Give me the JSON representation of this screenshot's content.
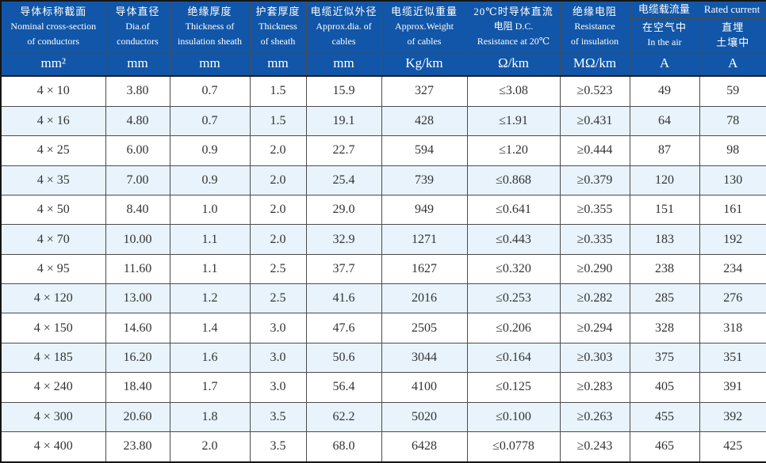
{
  "colors": {
    "header_bg": "#1156a8",
    "row_alt_bg": "#e8f3fb",
    "grid": "#4c4c4c",
    "outer": "#151515",
    "body_text": "#333333",
    "header_text": "#ffffff"
  },
  "table": {
    "columns": [
      {
        "id": "nominal-cross-section",
        "lines": [
          "导体标称截面",
          "Nominal cross-section",
          "of conductors"
        ]
      },
      {
        "id": "conductor-diameter",
        "lines": [
          "导体直径",
          "Dia.of",
          "conductors"
        ]
      },
      {
        "id": "insulation-thickness",
        "lines": [
          "绝缘厚度",
          "Thickness of",
          "insulation sheath"
        ]
      },
      {
        "id": "sheath-thickness",
        "lines": [
          "护套厚度",
          "Thickness",
          "of sheath"
        ]
      },
      {
        "id": "approx-diameter",
        "lines": [
          "电缆近似外径",
          "Approx.dia. of",
          "cables"
        ]
      },
      {
        "id": "approx-weight",
        "lines": [
          "电缆近似重量",
          "Approx.Weight",
          "of cables"
        ]
      },
      {
        "id": "dc-resistance",
        "lines": [
          "20℃时导体直流",
          "电阻 D.C.",
          "Resistance at 20℃"
        ]
      },
      {
        "id": "insulation-resistance",
        "lines": [
          "绝缘电阻",
          "Resistance",
          "of insulation"
        ]
      }
    ],
    "current_group": {
      "zh": "电缆载流量",
      "en": "Rated current"
    },
    "current_subcolumns": [
      {
        "id": "in-air",
        "lines": [
          "在空气中",
          "In the air"
        ]
      },
      {
        "id": "buried",
        "lines": [
          "直埋",
          "土壤中"
        ]
      }
    ],
    "units": [
      "mm²",
      "mm",
      "mm",
      "mm",
      "mm",
      "Kg/km",
      "Ω/km",
      "MΩ/km",
      "A",
      "A"
    ],
    "rows": [
      [
        "4 × 10",
        "3.80",
        "0.7",
        "1.5",
        "15.9",
        "327",
        "≤3.08",
        "≥0.523",
        "49",
        "59"
      ],
      [
        "4 × 16",
        "4.80",
        "0.7",
        "1.5",
        "19.1",
        "428",
        "≤1.91",
        "≥0.431",
        "64",
        "78"
      ],
      [
        "4 × 25",
        "6.00",
        "0.9",
        "2.0",
        "22.7",
        "594",
        "≤1.20",
        "≥0.444",
        "87",
        "98"
      ],
      [
        "4 × 35",
        "7.00",
        "0.9",
        "2.0",
        "25.4",
        "739",
        "≤0.868",
        "≥0.379",
        "120",
        "130"
      ],
      [
        "4 × 50",
        "8.40",
        "1.0",
        "2.0",
        "29.0",
        "949",
        "≤0.641",
        "≥0.355",
        "151",
        "161"
      ],
      [
        "4 × 70",
        "10.00",
        "1.1",
        "2.0",
        "32.9",
        "1271",
        "≤0.443",
        "≥0.335",
        "183",
        "192"
      ],
      [
        "4 × 95",
        "11.60",
        "1.1",
        "2.5",
        "37.7",
        "1627",
        "≤0.320",
        "≥0.290",
        "238",
        "234"
      ],
      [
        "4 × 120",
        "13.00",
        "1.2",
        "2.5",
        "41.6",
        "2016",
        "≤0.253",
        "≥0.282",
        "285",
        "276"
      ],
      [
        "4 × 150",
        "14.60",
        "1.4",
        "3.0",
        "47.6",
        "2505",
        "≤0.206",
        "≥0.294",
        "328",
        "318"
      ],
      [
        "4 × 185",
        "16.20",
        "1.6",
        "3.0",
        "50.6",
        "3044",
        "≤0.164",
        "≥0.303",
        "375",
        "351"
      ],
      [
        "4 × 240",
        "18.40",
        "1.7",
        "3.0",
        "56.4",
        "4100",
        "≤0.125",
        "≥0.283",
        "405",
        "391"
      ],
      [
        "4 × 300",
        "20.60",
        "1.8",
        "3.5",
        "62.2",
        "5020",
        "≤0.100",
        "≥0.263",
        "455",
        "392"
      ],
      [
        "4 × 400",
        "23.80",
        "2.0",
        "3.5",
        "68.0",
        "6428",
        "≤0.0778",
        "≥0.243",
        "465",
        "425"
      ]
    ]
  }
}
